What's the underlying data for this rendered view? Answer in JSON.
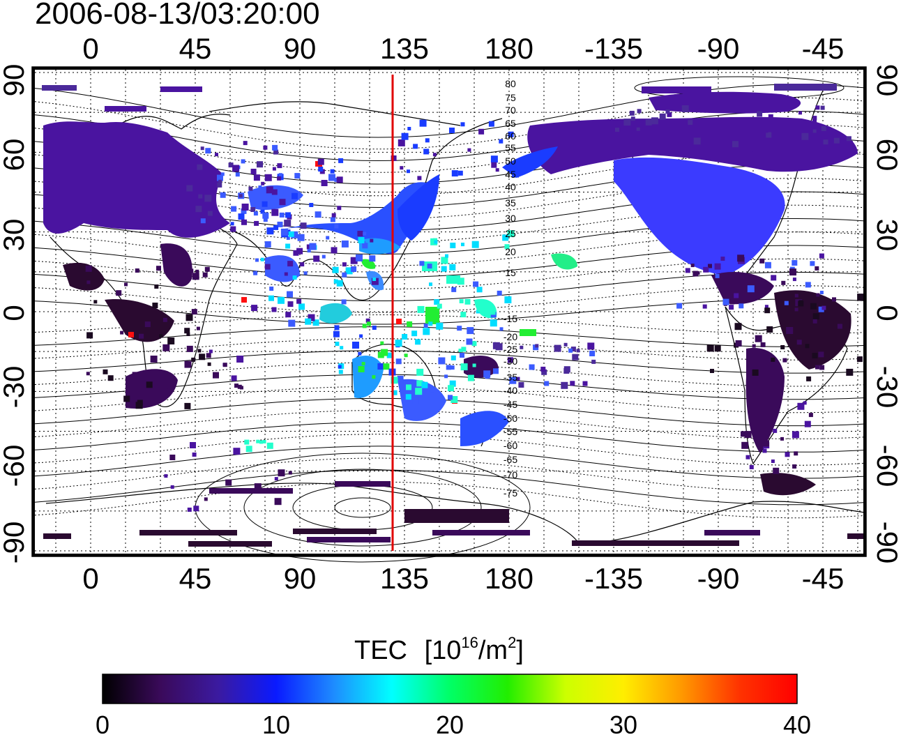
{
  "title": "2006-08-13/03:20:00",
  "map": {
    "top_lon_labels": [
      "0",
      "45",
      "90",
      "135",
      "180",
      "-135",
      "-90",
      "-45"
    ],
    "bottom_lon_labels": [
      "0",
      "45",
      "90",
      "135",
      "180",
      "-135",
      "-90",
      "-45"
    ],
    "left_lat_labels": [
      "90",
      "60",
      "30",
      "0",
      "-30",
      "-60",
      "-90"
    ],
    "right_lat_labels": [
      "90",
      "60",
      "30",
      "0",
      "-30",
      "-60",
      "-90"
    ],
    "contour_labels": [
      "80",
      "75",
      "70",
      "65",
      "60",
      "55",
      "50",
      "45",
      "40",
      "35",
      "30",
      "25",
      "20",
      "15",
      "-15",
      "-20",
      "-25",
      "-30",
      "-35",
      "-40",
      "-45",
      "-50",
      "-55",
      "-60",
      "-65",
      "-70",
      "-75"
    ],
    "meridian_marker_color": "#e00000"
  },
  "colorbar": {
    "label_text": "TEC",
    "label_unit_prefix": "[10",
    "label_unit_exp": "16",
    "label_unit_mid": "/m",
    "label_unit_exp2": "2",
    "label_unit_suffix": "]",
    "ticks": [
      "0",
      "10",
      "20",
      "30",
      "40"
    ],
    "gradient_colors": [
      "#000000",
      "#3a0a5a",
      "#3b1aa0",
      "#0a1aff",
      "#1e8cff",
      "#00ffff",
      "#00ff66",
      "#22ee00",
      "#ccff00",
      "#ffee00",
      "#ff9900",
      "#ff3300",
      "#ff0000"
    ]
  },
  "colors": {
    "purple_dark": "#3a0a5a",
    "purple": "#4a14a0",
    "violet": "#4b2a9a",
    "blue": "#1a3cff",
    "blue_mid": "#3b5bff",
    "cyan": "#00ddff",
    "aqua": "#22ffcc",
    "green": "#22ee33",
    "red": "#ff1010",
    "black_tec": "#1a0a20"
  }
}
